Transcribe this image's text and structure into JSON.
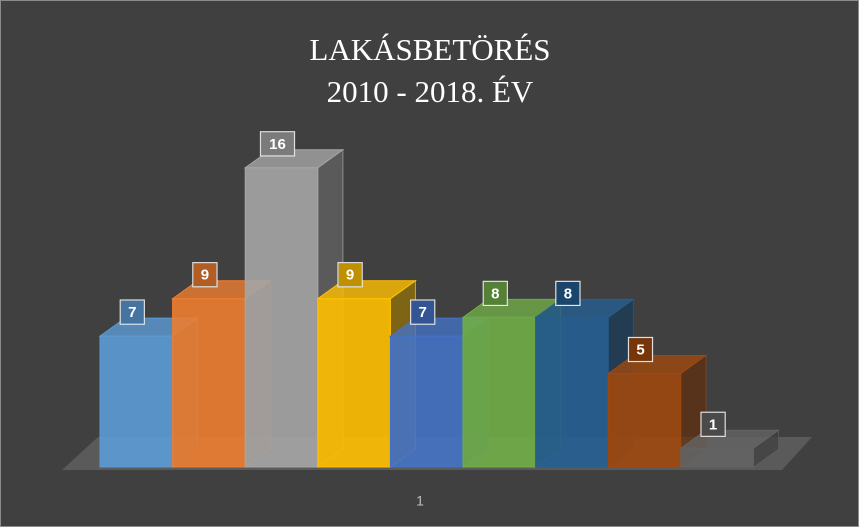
{
  "chart_data": {
    "type": "bar3d",
    "title": "LAKÁSBETÖRÉS",
    "subtitle": "2010 - 2018. ÉV",
    "categories": [
      "1"
    ],
    "series": [
      {
        "color": "#5b9bd5",
        "values": [
          7
        ]
      },
      {
        "color": "#ed7d31",
        "values": [
          9
        ]
      },
      {
        "color": "#a5a5a5",
        "values": [
          16
        ]
      },
      {
        "color": "#ffc000",
        "values": [
          9
        ]
      },
      {
        "color": "#4472c4",
        "values": [
          7
        ]
      },
      {
        "color": "#70ad47",
        "values": [
          8
        ]
      },
      {
        "color": "#255e91",
        "values": [
          8
        ]
      },
      {
        "color": "#9e480e",
        "values": [
          5
        ]
      },
      {
        "color": "#636363",
        "values": [
          1
        ]
      }
    ]
  }
}
